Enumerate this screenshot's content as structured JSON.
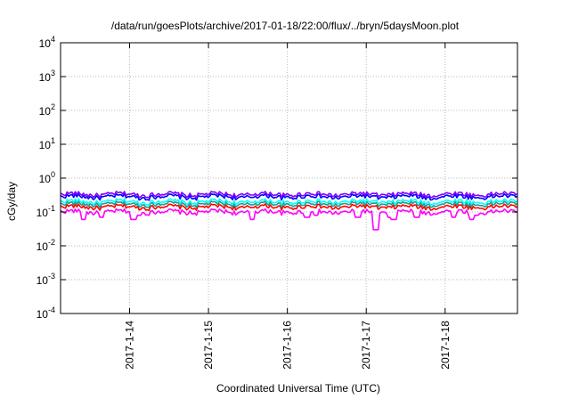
{
  "chart_data": {
    "type": "line",
    "title": "/data/run/goesPlots/archive/2017-01-18/22:00/flux/../bryn/5daysMoon.plot",
    "xlabel": "Coordinated Universal Time (UTC)",
    "ylabel": "cGy/day",
    "yscale": "log",
    "ylim": [
      0.0001,
      10000
    ],
    "yticks": [
      {
        "value": 0.0001,
        "base": "10",
        "exp": "-4"
      },
      {
        "value": 0.001,
        "base": "10",
        "exp": "-3"
      },
      {
        "value": 0.01,
        "base": "10",
        "exp": "-2"
      },
      {
        "value": 0.1,
        "base": "10",
        "exp": "-1"
      },
      {
        "value": 1,
        "base": "10",
        "exp": "0"
      },
      {
        "value": 10,
        "base": "10",
        "exp": "1"
      },
      {
        "value": 100,
        "base": "10",
        "exp": "2"
      },
      {
        "value": 1000,
        "base": "10",
        "exp": "3"
      },
      {
        "value": 10000,
        "base": "10",
        "exp": "4"
      }
    ],
    "xlim": [
      "2017-01-13 03:00",
      "2017-01-18 22:00"
    ],
    "xticks": [
      "2017-1-14",
      "2017-1-15",
      "2017-1-16",
      "2017-1-17",
      "2017-1-18"
    ],
    "grid": true,
    "series": [
      {
        "color": "#ff00ff",
        "base": 0.1,
        "dips": [
          [
            0.05,
            0.06
          ],
          [
            0.09,
            0.07
          ],
          [
            0.16,
            0.06
          ],
          [
            0.17,
            0.08
          ],
          [
            0.42,
            0.06
          ],
          [
            0.54,
            0.07
          ],
          [
            0.56,
            0.08
          ],
          [
            0.65,
            0.07
          ],
          [
            0.69,
            0.03
          ],
          [
            0.72,
            0.07
          ],
          [
            0.73,
            0.06
          ],
          [
            0.78,
            0.07
          ],
          [
            0.86,
            0.07
          ],
          [
            0.9,
            0.06
          ],
          [
            0.91,
            0.08
          ]
        ]
      },
      {
        "color": "#ff0000",
        "base": 0.14
      },
      {
        "color": "#1e9b8a",
        "base": 0.17
      },
      {
        "color": "#00ffff",
        "base": 0.2
      },
      {
        "color": "#0000ff",
        "base": 0.28
      },
      {
        "color": "#8000ff",
        "base": 0.33
      }
    ]
  }
}
